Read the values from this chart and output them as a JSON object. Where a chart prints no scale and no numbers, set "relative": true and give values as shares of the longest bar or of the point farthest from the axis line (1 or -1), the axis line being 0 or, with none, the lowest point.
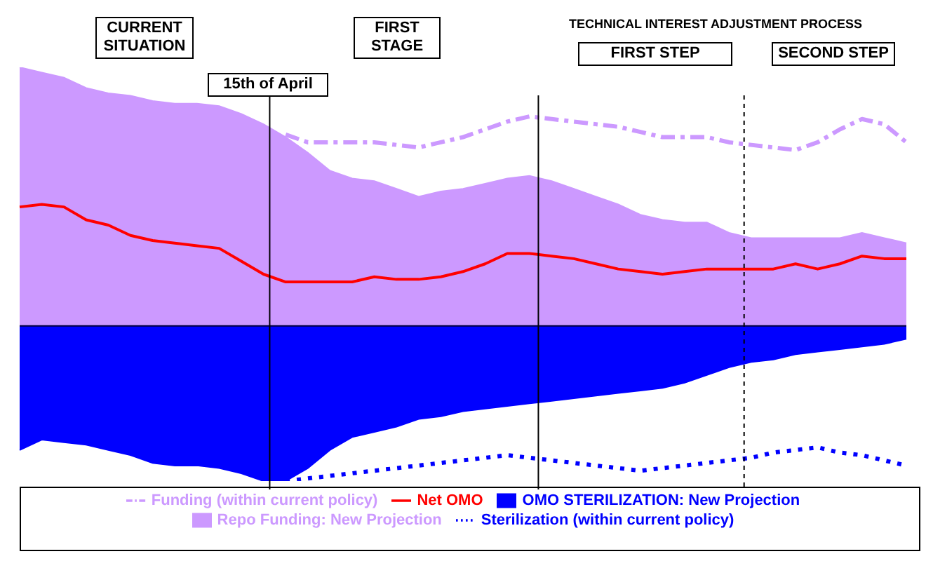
{
  "chart_data": {
    "type": "area",
    "relative": true,
    "legend": "bottom",
    "categories": [
      null,
      null,
      null,
      null,
      null,
      null,
      null,
      null,
      null,
      null,
      null,
      null,
      null,
      null,
      null,
      null,
      null,
      null,
      null,
      null,
      null,
      null,
      null,
      null,
      null,
      null,
      null,
      null,
      null,
      null,
      null,
      null,
      null,
      null,
      null,
      null,
      null,
      null,
      null,
      null,
      null
    ],
    "annotations": [
      "CURRENT SITUATION",
      "FIRST STAGE",
      "TECHNICAL INTEREST ADJUSTMENT PROCESS",
      "FIRST STEP",
      "SECOND STEP",
      "15th of April"
    ],
    "series": [
      {
        "name": "Repo Funding: New Projection",
        "color": "#cc99ff",
        "values": [
          1.0,
          0.98,
          0.96,
          0.92,
          0.9,
          0.89,
          0.87,
          0.86,
          0.86,
          0.85,
          0.82,
          0.78,
          0.73,
          0.67,
          0.6,
          0.57,
          0.56,
          0.53,
          0.5,
          0.52,
          0.53,
          0.55,
          0.57,
          0.58,
          0.56,
          0.53,
          0.5,
          0.47,
          0.43,
          0.41,
          0.4,
          0.4,
          0.36,
          0.34,
          0.34,
          0.34,
          0.34,
          0.34,
          0.36,
          0.34,
          0.32
        ]
      },
      {
        "name": "OMO STERILIZATION: New Projection",
        "color": "#0000ff",
        "values": [
          -0.48,
          -0.44,
          -0.45,
          -0.46,
          -0.48,
          -0.5,
          -0.53,
          -0.54,
          -0.54,
          -0.55,
          -0.57,
          -0.6,
          -0.6,
          -0.55,
          -0.48,
          -0.43,
          -0.41,
          -0.39,
          -0.36,
          -0.35,
          -0.33,
          -0.32,
          -0.31,
          -0.3,
          -0.29,
          -0.28,
          -0.27,
          -0.26,
          -0.25,
          -0.24,
          -0.22,
          -0.19,
          -0.16,
          -0.14,
          -0.13,
          -0.11,
          -0.1,
          -0.09,
          -0.08,
          -0.07,
          -0.05
        ]
      },
      {
        "name": "Funding (within current policy)",
        "type": "line",
        "line_style": "dashed",
        "color": "#cc99ff",
        "values": [
          null,
          null,
          null,
          null,
          null,
          null,
          null,
          null,
          null,
          null,
          null,
          null,
          0.74,
          0.71,
          0.71,
          0.71,
          0.71,
          0.7,
          0.69,
          0.71,
          0.73,
          0.76,
          0.79,
          0.81,
          0.8,
          0.79,
          0.78,
          0.77,
          0.75,
          0.73,
          0.73,
          0.73,
          0.71,
          0.7,
          0.69,
          0.68,
          0.71,
          0.76,
          0.8,
          0.78,
          0.71
        ]
      },
      {
        "name": "Sterilization (within current policy)",
        "type": "line",
        "line_style": "dotted",
        "color": "#0000ff",
        "values": [
          null,
          null,
          null,
          null,
          null,
          null,
          null,
          null,
          null,
          null,
          null,
          null,
          -0.6,
          -0.59,
          -0.58,
          -0.57,
          -0.56,
          -0.55,
          -0.54,
          -0.53,
          -0.52,
          -0.51,
          -0.5,
          -0.51,
          -0.52,
          -0.53,
          -0.54,
          -0.55,
          -0.56,
          -0.55,
          -0.54,
          -0.53,
          -0.52,
          -0.51,
          -0.49,
          -0.48,
          -0.47,
          -0.49,
          -0.5,
          -0.52,
          -0.54
        ]
      },
      {
        "name": "Net OMO",
        "type": "line",
        "line_style": "solid",
        "color": "#ff0000",
        "values": [
          0.46,
          0.47,
          0.46,
          0.41,
          0.39,
          0.35,
          0.33,
          0.32,
          0.31,
          0.3,
          0.25,
          0.2,
          0.17,
          0.17,
          0.17,
          0.17,
          0.19,
          0.18,
          0.18,
          0.19,
          0.21,
          0.24,
          0.28,
          0.28,
          0.27,
          0.26,
          0.24,
          0.22,
          0.21,
          0.2,
          0.21,
          0.22,
          0.22,
          0.22,
          0.22,
          0.24,
          0.22,
          0.24,
          0.27,
          0.26,
          0.26
        ]
      }
    ]
  }
}
